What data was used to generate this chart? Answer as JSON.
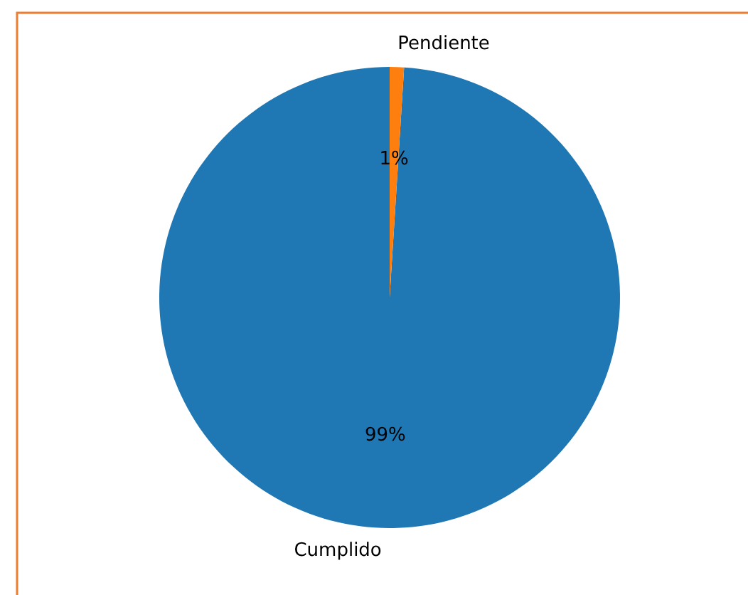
{
  "chart_data": {
    "type": "pie",
    "categories": [
      "Cumplido",
      "Pendiente"
    ],
    "values": [
      99,
      1
    ],
    "value_labels": [
      "99%",
      "1%"
    ],
    "colors": [
      "#1f77b4",
      "#ff7f0e"
    ]
  }
}
